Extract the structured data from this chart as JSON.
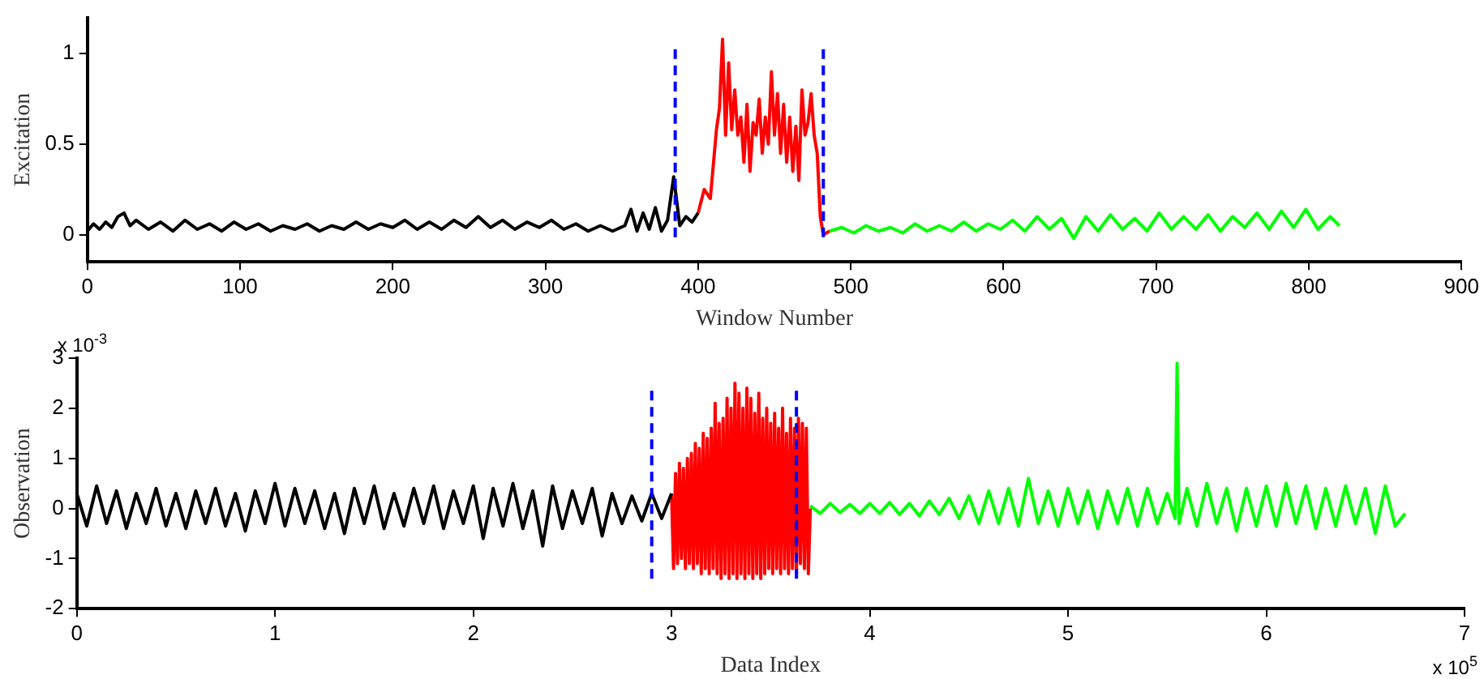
{
  "chart_data": [
    {
      "type": "line",
      "xlabel": "Window Number",
      "ylabel": "Excitation",
      "xlim": [
        0,
        900
      ],
      "xticks": [
        0,
        100,
        200,
        300,
        400,
        500,
        600,
        700,
        800,
        900
      ],
      "ylim": [
        -0.15,
        1.2
      ],
      "yticks": [
        0,
        0.5,
        1
      ],
      "legend": false,
      "marker": "none",
      "series": [
        {
          "color": "#000000",
          "x": [
            0,
            4,
            8,
            12,
            16,
            20,
            24,
            28,
            32,
            40,
            48,
            56,
            64,
            72,
            80,
            88,
            96,
            104,
            112,
            120,
            128,
            136,
            144,
            152,
            160,
            168,
            176,
            184,
            192,
            200,
            208,
            216,
            224,
            232,
            240,
            248,
            256,
            264,
            272,
            280,
            288,
            296,
            304,
            312,
            320,
            328,
            336,
            344,
            352,
            356,
            360,
            364,
            368,
            372,
            376,
            380,
            384,
            388,
            392,
            396,
            400
          ],
          "values": [
            0.02,
            0.06,
            0.03,
            0.07,
            0.04,
            0.1,
            0.12,
            0.05,
            0.08,
            0.03,
            0.07,
            0.02,
            0.08,
            0.03,
            0.06,
            0.02,
            0.07,
            0.03,
            0.06,
            0.02,
            0.05,
            0.03,
            0.06,
            0.02,
            0.05,
            0.03,
            0.07,
            0.03,
            0.06,
            0.04,
            0.08,
            0.03,
            0.07,
            0.03,
            0.08,
            0.04,
            0.1,
            0.04,
            0.08,
            0.03,
            0.07,
            0.04,
            0.08,
            0.03,
            0.06,
            0.02,
            0.05,
            0.02,
            0.05,
            0.14,
            0.02,
            0.12,
            0.03,
            0.15,
            0.02,
            0.08,
            0.32,
            0.05,
            0.1,
            0.07,
            0.12
          ]
        },
        {
          "color": "#ff0000",
          "x": [
            400,
            404,
            408,
            412,
            414,
            416,
            418,
            420,
            422,
            424,
            426,
            428,
            430,
            432,
            434,
            436,
            438,
            440,
            442,
            444,
            446,
            448,
            450,
            452,
            454,
            456,
            458,
            460,
            462,
            464,
            466,
            468,
            470,
            472,
            474,
            476,
            478,
            480,
            482,
            486
          ],
          "values": [
            0.12,
            0.25,
            0.2,
            0.58,
            0.7,
            1.08,
            0.55,
            0.95,
            0.58,
            0.8,
            0.55,
            0.65,
            0.4,
            0.72,
            0.35,
            0.62,
            0.55,
            0.75,
            0.45,
            0.65,
            0.5,
            0.9,
            0.55,
            0.78,
            0.45,
            0.72,
            0.4,
            0.65,
            0.35,
            0.6,
            0.3,
            0.8,
            0.55,
            0.62,
            0.78,
            0.55,
            0.45,
            0.1,
            0.0,
            0.02
          ]
        },
        {
          "color": "#00ff00",
          "x": [
            486,
            494,
            502,
            510,
            518,
            526,
            534,
            542,
            550,
            558,
            566,
            574,
            582,
            590,
            598,
            606,
            614,
            622,
            630,
            638,
            646,
            654,
            662,
            670,
            678,
            686,
            694,
            702,
            710,
            718,
            726,
            734,
            742,
            750,
            758,
            766,
            774,
            782,
            790,
            798,
            806,
            814,
            820
          ],
          "values": [
            0.02,
            0.04,
            0.01,
            0.05,
            0.02,
            0.04,
            0.01,
            0.06,
            0.02,
            0.05,
            0.02,
            0.07,
            0.02,
            0.06,
            0.03,
            0.08,
            0.02,
            0.1,
            0.03,
            0.09,
            -0.02,
            0.1,
            0.02,
            0.11,
            0.03,
            0.09,
            0.02,
            0.12,
            0.03,
            0.1,
            0.03,
            0.11,
            0.02,
            0.1,
            0.04,
            0.12,
            0.03,
            0.13,
            0.04,
            0.14,
            0.03,
            0.1,
            0.05
          ]
        }
      ],
      "ref_lines": [
        {
          "axis": "x",
          "value": 385,
          "color": "#0000ff",
          "line_style": "dashed"
        },
        {
          "axis": "x",
          "value": 482,
          "color": "#0000ff",
          "line_style": "dashed"
        }
      ]
    },
    {
      "type": "line",
      "xlabel": "Data Index",
      "ylabel": "Observation",
      "xlim": [
        0,
        7
      ],
      "xticks": [
        0,
        1,
        2,
        3,
        4,
        5,
        6,
        7
      ],
      "ylim": [
        -2,
        3
      ],
      "yticks": [
        -2,
        -1,
        0,
        1,
        2,
        3
      ],
      "legend": false,
      "marker": "none",
      "annotations": [
        "x 10$^{-3}$",
        "x 10$^{5}$"
      ],
      "series": [
        {
          "color": "#000000",
          "x": [
            0,
            0.05,
            0.1,
            0.15,
            0.2,
            0.25,
            0.3,
            0.35,
            0.4,
            0.45,
            0.5,
            0.55,
            0.6,
            0.65,
            0.7,
            0.75,
            0.8,
            0.85,
            0.9,
            0.95,
            1.0,
            1.05,
            1.1,
            1.15,
            1.2,
            1.25,
            1.3,
            1.35,
            1.4,
            1.45,
            1.5,
            1.55,
            1.6,
            1.65,
            1.7,
            1.75,
            1.8,
            1.85,
            1.9,
            1.95,
            2.0,
            2.05,
            2.1,
            2.15,
            2.2,
            2.25,
            2.3,
            2.35,
            2.4,
            2.45,
            2.5,
            2.55,
            2.6,
            2.65,
            2.7,
            2.75,
            2.8,
            2.85,
            2.9,
            2.95,
            3.0
          ],
          "values": [
            0.3,
            -0.35,
            0.45,
            -0.3,
            0.35,
            -0.4,
            0.3,
            -0.3,
            0.4,
            -0.35,
            0.3,
            -0.4,
            0.35,
            -0.3,
            0.4,
            -0.35,
            0.3,
            -0.45,
            0.35,
            -0.3,
            0.5,
            -0.35,
            0.4,
            -0.3,
            0.35,
            -0.4,
            0.3,
            -0.5,
            0.4,
            -0.3,
            0.45,
            -0.4,
            0.3,
            -0.35,
            0.4,
            -0.3,
            0.45,
            -0.4,
            0.35,
            -0.3,
            0.45,
            -0.6,
            0.4,
            -0.35,
            0.5,
            -0.4,
            0.35,
            -0.75,
            0.45,
            -0.4,
            0.35,
            -0.3,
            0.4,
            -0.55,
            0.3,
            -0.3,
            0.25,
            -0.25,
            0.3,
            -0.2,
            0.3
          ]
        },
        {
          "color": "#ff0000",
          "x": [
            3.0,
            3.01,
            3.02,
            3.03,
            3.04,
            3.05,
            3.06,
            3.07,
            3.08,
            3.09,
            3.1,
            3.11,
            3.12,
            3.13,
            3.14,
            3.15,
            3.16,
            3.17,
            3.18,
            3.19,
            3.2,
            3.21,
            3.22,
            3.23,
            3.24,
            3.25,
            3.26,
            3.27,
            3.28,
            3.29,
            3.3,
            3.31,
            3.32,
            3.33,
            3.34,
            3.35,
            3.36,
            3.37,
            3.38,
            3.39,
            3.4,
            3.41,
            3.42,
            3.43,
            3.44,
            3.45,
            3.46,
            3.47,
            3.48,
            3.49,
            3.5,
            3.51,
            3.52,
            3.53,
            3.54,
            3.55,
            3.56,
            3.57,
            3.58,
            3.59,
            3.6,
            3.61,
            3.62,
            3.63,
            3.64,
            3.65,
            3.66,
            3.67,
            3.68,
            3.69,
            3.7
          ],
          "values": [
            0.3,
            -1.2,
            0.7,
            -1.1,
            0.9,
            -1.0,
            0.8,
            -1.2,
            1.0,
            -1.1,
            1.1,
            -1.2,
            1.3,
            -1.1,
            1.2,
            -1.3,
            1.5,
            -1.2,
            1.4,
            -1.3,
            1.6,
            -1.2,
            2.1,
            -1.3,
            1.7,
            -1.4,
            1.8,
            -1.3,
            2.2,
            -1.4,
            2.0,
            -1.3,
            2.5,
            -1.4,
            2.3,
            -1.3,
            2.0,
            -1.4,
            2.4,
            -1.3,
            2.2,
            -1.4,
            1.9,
            -1.3,
            2.3,
            -1.4,
            1.8,
            -1.3,
            2.0,
            -1.2,
            1.7,
            -1.3,
            1.9,
            -1.2,
            1.6,
            -1.3,
            2.0,
            -1.2,
            1.5,
            -1.3,
            1.8,
            -1.2,
            1.6,
            -1.3,
            1.8,
            -1.1,
            1.7,
            -1.2,
            1.6,
            -1.3,
            0.0
          ]
        },
        {
          "color": "#00ff00",
          "x": [
            3.7,
            3.75,
            3.8,
            3.85,
            3.9,
            3.95,
            4.0,
            4.05,
            4.1,
            4.15,
            4.2,
            4.25,
            4.3,
            4.35,
            4.4,
            4.45,
            4.5,
            4.55,
            4.6,
            4.65,
            4.7,
            4.75,
            4.8,
            4.85,
            4.9,
            4.95,
            5.0,
            5.05,
            5.1,
            5.15,
            5.2,
            5.25,
            5.3,
            5.35,
            5.4,
            5.45,
            5.5,
            5.54,
            5.55,
            5.56,
            5.6,
            5.65,
            5.7,
            5.75,
            5.8,
            5.85,
            5.9,
            5.95,
            6.0,
            6.05,
            6.1,
            6.15,
            6.2,
            6.25,
            6.3,
            6.35,
            6.4,
            6.45,
            6.5,
            6.55,
            6.6,
            6.65,
            6.7
          ],
          "values": [
            0.05,
            -0.1,
            0.1,
            -0.08,
            0.08,
            -0.1,
            0.1,
            -0.1,
            0.12,
            -0.12,
            0.1,
            -0.15,
            0.15,
            -0.12,
            0.2,
            -0.2,
            0.25,
            -0.3,
            0.35,
            -0.3,
            0.4,
            -0.35,
            0.6,
            -0.3,
            0.35,
            -0.35,
            0.4,
            -0.3,
            0.35,
            -0.4,
            0.35,
            -0.3,
            0.4,
            -0.35,
            0.4,
            -0.3,
            0.3,
            -0.2,
            2.9,
            -0.3,
            0.4,
            -0.35,
            0.5,
            -0.3,
            0.4,
            -0.45,
            0.4,
            -0.35,
            0.45,
            -0.35,
            0.5,
            -0.3,
            0.45,
            -0.4,
            0.4,
            -0.35,
            0.45,
            -0.3,
            0.4,
            -0.5,
            0.45,
            -0.35,
            -0.1
          ]
        }
      ],
      "ref_lines": [
        {
          "axis": "x",
          "value": 2.9,
          "color": "#0000ff",
          "line_style": "dashed"
        },
        {
          "axis": "x",
          "value": 3.63,
          "color": "#0000ff",
          "line_style": "dashed"
        }
      ]
    }
  ]
}
